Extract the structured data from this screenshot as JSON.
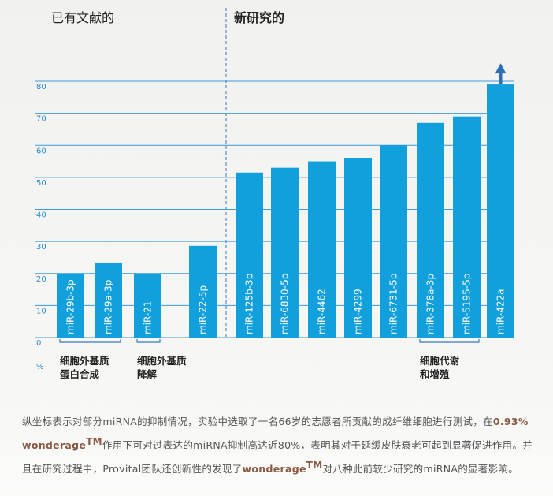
{
  "chart_data": {
    "type": "bar",
    "left_header": "已有文献的",
    "right_header": "新研究的",
    "categories": [
      "miR-29b-3p",
      "miR-29a-3p",
      "miR-21",
      "miR-22-5p",
      "miR-125b-3p",
      "miR-6830-5p",
      "miR-4462",
      "miR-4299",
      "miR-6731-5p",
      "miR-378a-3p",
      "miR-5195-5p",
      "miR-422a"
    ],
    "values": [
      20,
      23.4,
      19.7,
      28.6,
      51.5,
      53,
      55,
      56,
      60,
      67,
      69,
      79
    ],
    "color": "#12a0dc",
    "ylim": [
      0,
      80
    ],
    "yticks": [
      0,
      10,
      20,
      30,
      40,
      50,
      60,
      70,
      80
    ],
    "y_unit": "%",
    "grid": true,
    "groups": [
      {
        "lines": [
          "细胞外基质",
          "蛋白合成"
        ],
        "from": 0,
        "to": 1
      },
      {
        "lines": [
          "细胞外基质",
          "降解"
        ],
        "from": 2,
        "to": 2
      },
      {
        "lines": [
          "细胞代谢",
          "和增殖"
        ],
        "from": 9,
        "to": 10
      }
    ]
  },
  "paragraph": {
    "text1": "纵坐标表示对部分miRNA的抑制情况，实验中选取了一名66岁的志愿者所贡献的成纤维细胞进行测试，在",
    "highlight1": "0.93% wonderage",
    "sup1": "TM",
    "text2": "作用下可对过表达的miRNA抑制高达近80%，表明其对于延缓皮肤衰老可起到显著促进作用。并且在研究过程中，Provital团队还创新性的发现了",
    "highlight2": "wonderage",
    "sup2": "TM",
    "text3": "对八种此前较少研究的miRNA的显著影响。"
  }
}
